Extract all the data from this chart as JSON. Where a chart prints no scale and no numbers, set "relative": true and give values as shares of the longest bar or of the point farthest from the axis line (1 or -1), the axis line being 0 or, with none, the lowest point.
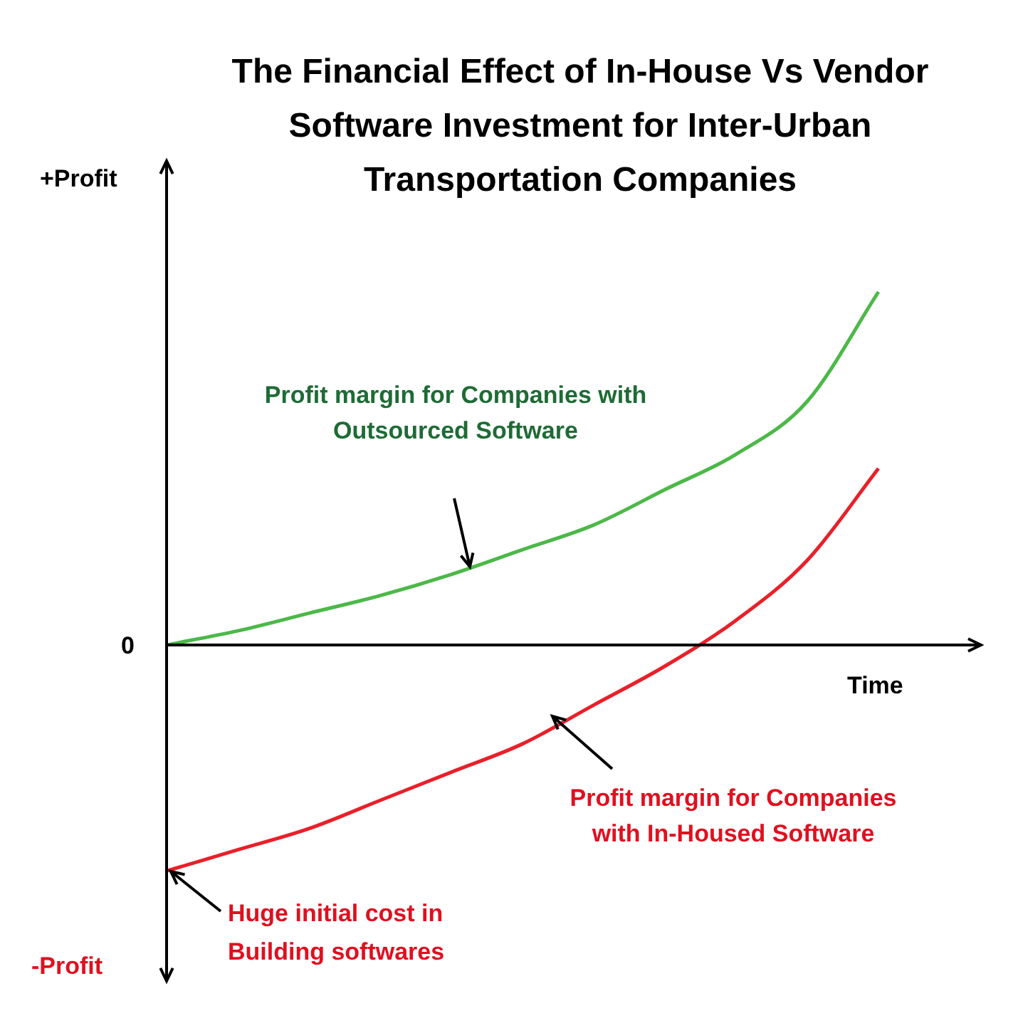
{
  "chart_data": {
    "type": "line",
    "title": "The Financial Effect of In-House Vs Vendor Software Investment for Inter-Urban Transportation Companies",
    "xlabel": "Time",
    "relative": true,
    "marker": "none",
    "legend": false,
    "categories": [
      null,
      null,
      null,
      null,
      null,
      null,
      null,
      null,
      null,
      null,
      null
    ],
    "series": [
      {
        "name": "Profit margin for Companies with Outsourced Software",
        "color": "#4cb848",
        "values": [
          0,
          0.04,
          0.09,
          0.14,
          0.2,
          0.27,
          0.34,
          0.44,
          0.54,
          0.69,
          1
        ]
      },
      {
        "name": "Profit margin for Companies with In-Housed Software",
        "color": "#e8202a",
        "values": [
          -0.64,
          -0.58,
          -0.52,
          -0.44,
          -0.36,
          -0.28,
          -0.17,
          -0.06,
          0.07,
          0.24,
          0.5
        ]
      }
    ],
    "annotations": [
      "+Profit",
      "0",
      "-Profit",
      "Huge initial cost in Building softwares"
    ]
  }
}
